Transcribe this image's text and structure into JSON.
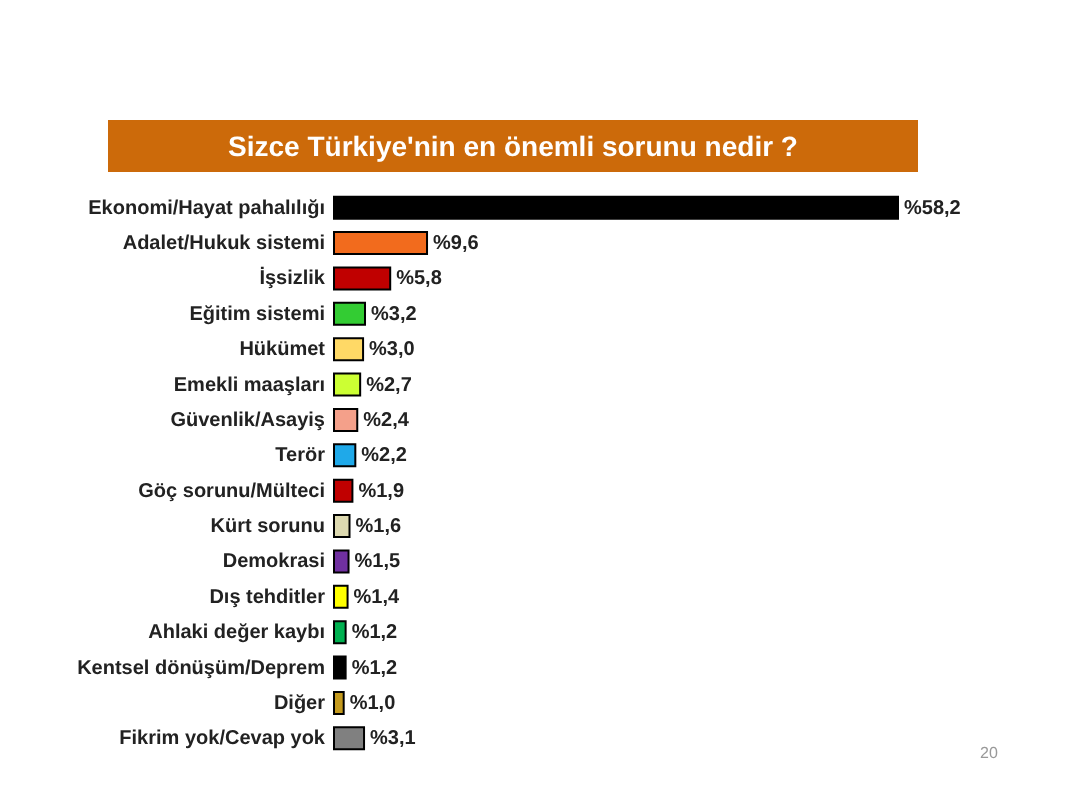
{
  "chart_data": {
    "type": "bar",
    "orientation": "horizontal",
    "title": "Sizce Türkiye'nin en önemli sorunu nedir ?",
    "categories": [
      "Ekonomi/Hayat pahalılığı",
      "Adalet/Hukuk sistemi",
      "İşsizlik",
      "Eğitim sistemi",
      "Hükümet",
      "Emekli maaşları",
      "Güvenlik/Asayiş",
      "Terör",
      "Göç sorunu/Mülteci",
      "Kürt sorunu",
      "Demokrasi",
      "Dış tehditler",
      "Ahlaki değer kaybı",
      "Kentsel dönüşüm/Deprem",
      "Diğer",
      "Fikrim yok/Cevap yok"
    ],
    "values": [
      58.2,
      9.6,
      5.8,
      3.2,
      3.0,
      2.7,
      2.4,
      2.2,
      1.9,
      1.6,
      1.5,
      1.4,
      1.2,
      1.2,
      1.0,
      3.1
    ],
    "colors": [
      "#000000",
      "#f26b1d",
      "#c00000",
      "#33cc33",
      "#ffd966",
      "#ccff33",
      "#f4a08a",
      "#1fa9e9",
      "#c00000",
      "#ddd9b0",
      "#7030a0",
      "#ffff00",
      "#00b050",
      "#000000",
      "#c49a1e",
      "#808080"
    ],
    "value_labels": [
      "%58,2",
      "%9,6",
      "%5,8",
      "%3,2",
      "%3,0",
      "%2,7",
      "%2,4",
      "%2,2",
      "%1,9",
      "%1,6",
      "%1,5",
      "%1,4",
      "%1,2",
      "%1,2",
      "%1,0",
      "%3,1"
    ],
    "annotations": [
      "20"
    ]
  }
}
